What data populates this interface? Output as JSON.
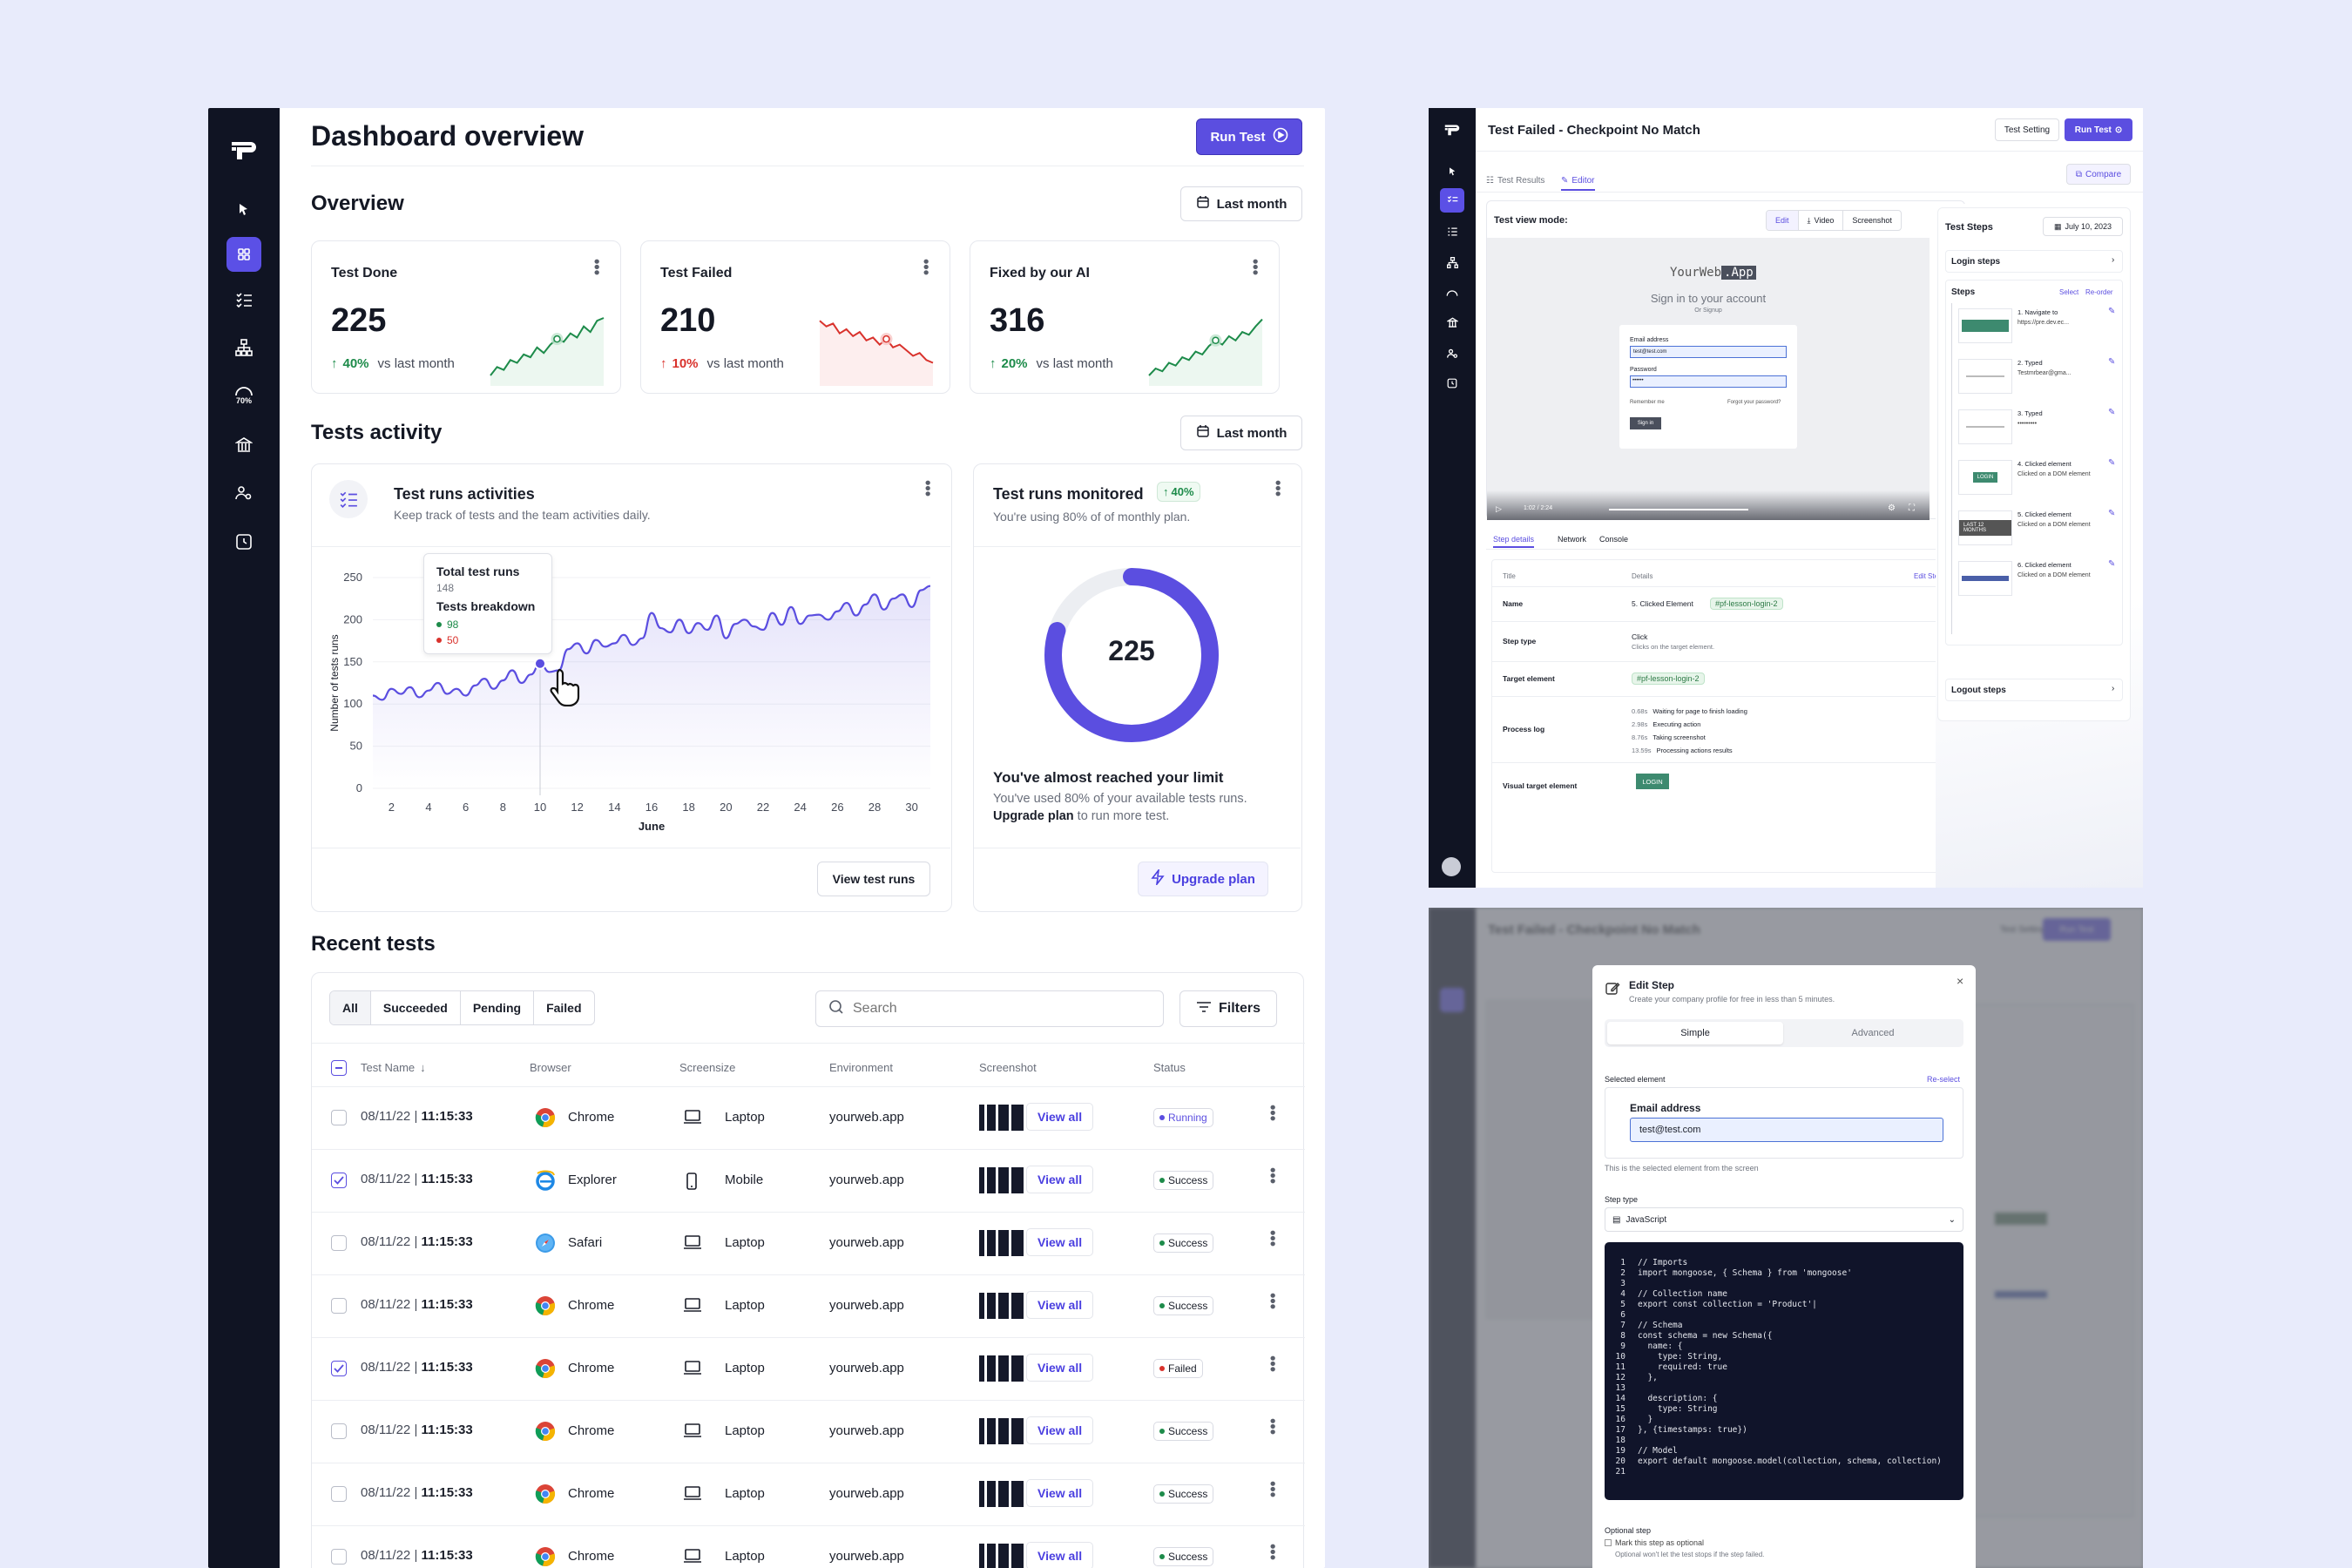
{
  "dashboard": {
    "title": "Dashboard overview",
    "run_test": "Run Test",
    "overview": {
      "heading": "Overview",
      "period": "Last month",
      "cards": [
        {
          "title": "Test Done",
          "value": "225",
          "change": "40%",
          "trend": "up",
          "sub": "vs last month"
        },
        {
          "title": "Test Failed",
          "value": "210",
          "change": "10%",
          "trend": "up",
          "sub": "vs last month"
        },
        {
          "title": "Fixed by our AI",
          "value": "316",
          "change": "20%",
          "trend": "up",
          "sub": "vs last month"
        }
      ]
    },
    "activity": {
      "heading": "Tests activity",
      "period": "Last month",
      "runs_card": {
        "title": "Test runs activities",
        "subtitle": "Keep track of tests and the team activities daily.",
        "tooltip": {
          "title": "Total test runs",
          "value": "148",
          "breakdown_title": "Tests breakdown",
          "passed": "98",
          "failed": "50"
        },
        "view_button": "View test runs"
      },
      "monitor_card": {
        "title": "Test runs monitored",
        "badge": "40%",
        "subtitle": "You're using 80% of of monthly plan.",
        "donut_value": "225",
        "donut_fraction": 0.8,
        "limit_title": "You've almost reached your limit",
        "limit_text": "You've used 80% of your available tests runs.",
        "upgrade_link": "Upgrade plan",
        "upgrade_suffix": " to run more test.",
        "upgrade_button": "Upgrade plan"
      }
    },
    "recent": {
      "heading": "Recent tests",
      "filters": [
        "All",
        "Succeeded",
        "Pending",
        "Failed"
      ],
      "search_placeholder": "Search",
      "filters_button": "Filters",
      "columns": [
        "Test Name",
        "Browser",
        "Screensize",
        "Environment",
        "Screenshot",
        "Status"
      ],
      "rows": [
        {
          "date": "08/11/22",
          "time": "11:15:33",
          "browser": "Chrome",
          "screen": "Laptop",
          "env": "yourweb.app",
          "view": "View all",
          "status": "Running",
          "checked": false
        },
        {
          "date": "08/11/22",
          "time": "11:15:33",
          "browser": "Explorer",
          "screen": "Mobile",
          "env": "yourweb.app",
          "view": "View all",
          "status": "Success",
          "checked": true
        },
        {
          "date": "08/11/22",
          "time": "11:15:33",
          "browser": "Safari",
          "screen": "Laptop",
          "env": "yourweb.app",
          "view": "View all",
          "status": "Success",
          "checked": false
        },
        {
          "date": "08/11/22",
          "time": "11:15:33",
          "browser": "Chrome",
          "screen": "Laptop",
          "env": "yourweb.app",
          "view": "View all",
          "status": "Success",
          "checked": false
        },
        {
          "date": "08/11/22",
          "time": "11:15:33",
          "browser": "Chrome",
          "screen": "Laptop",
          "env": "yourweb.app",
          "view": "View all",
          "status": "Failed",
          "checked": true
        },
        {
          "date": "08/11/22",
          "time": "11:15:33",
          "browser": "Chrome",
          "screen": "Laptop",
          "env": "yourweb.app",
          "view": "View all",
          "status": "Success",
          "checked": false
        },
        {
          "date": "08/11/22",
          "time": "11:15:33",
          "browser": "Chrome",
          "screen": "Laptop",
          "env": "yourweb.app",
          "view": "View all",
          "status": "Success",
          "checked": false
        },
        {
          "date": "08/11/22",
          "time": "11:15:33",
          "browser": "Chrome",
          "screen": "Laptop",
          "env": "yourweb.app",
          "view": "View all",
          "status": "Success",
          "checked": false
        }
      ]
    },
    "sidebar_icons": [
      "logo-icon",
      "cursor-icon",
      "dashboard-icon",
      "checklist-icon",
      "sitemap-icon",
      "gauge-icon",
      "bank-icon",
      "user-settings-icon",
      "clock-icon"
    ],
    "sidebar_gauge_label": "70%"
  },
  "chart_data": {
    "type": "line",
    "xlabel": "June",
    "ylabel": "Number of tests runs",
    "ylim": [
      0,
      250
    ],
    "yticks": [
      0,
      50,
      100,
      150,
      200,
      250
    ],
    "xticks": [
      2,
      4,
      6,
      8,
      10,
      12,
      14,
      16,
      18,
      20,
      22,
      24,
      26,
      28,
      30
    ],
    "xlim": [
      1,
      31
    ],
    "series": [
      {
        "x": [
          1,
          1.5,
          2,
          2.5,
          3,
          3.5,
          4,
          4.5,
          5,
          5.5,
          6,
          6.5,
          7,
          7.5,
          8,
          8.5,
          9,
          9.5,
          10,
          10.5,
          11,
          11.5,
          12,
          12.5,
          13,
          13.5,
          14,
          14.5,
          15,
          15.5,
          16,
          16.5,
          17,
          17.5,
          18,
          18.5,
          19,
          19.5,
          20,
          20.5,
          21,
          21.5,
          22,
          22.5,
          23,
          23.5,
          24,
          24.5,
          25,
          25.5,
          26,
          26.5,
          27,
          27.5,
          28,
          28.5,
          29,
          29.5,
          30,
          30.5,
          31
        ],
        "values": [
          110,
          105,
          118,
          112,
          120,
          108,
          116,
          125,
          112,
          118,
          110,
          122,
          130,
          118,
          128,
          140,
          125,
          135,
          148,
          138,
          140,
          165,
          172,
          160,
          176,
          168,
          172,
          182,
          170,
          178,
          208,
          190,
          185,
          200,
          184,
          196,
          188,
          205,
          178,
          195,
          200,
          192,
          188,
          208,
          194,
          215,
          195,
          205,
          206,
          200,
          210,
          220,
          205,
          218,
          230,
          212,
          225,
          230,
          215,
          235,
          240
        ]
      }
    ],
    "highlight": {
      "x": 10,
      "y": 148
    }
  },
  "editor": {
    "title": "Test Failed - Checkpoint No Match",
    "test_setting": "Test Setting",
    "run_test": "Run Test",
    "tabs": [
      "Test Results",
      "Editor"
    ],
    "compare": "Compare",
    "view_mode_label": "Test view mode:",
    "view_modes": [
      "Edit",
      "Video",
      "Screenshot"
    ],
    "preview": {
      "brand_a": "YourWeb",
      "brand_b": ".App",
      "heading": "Sign in to your account",
      "sub": "Or Signup",
      "email_label": "Email address",
      "email_value": "test@test.com",
      "password_label": "Password",
      "password_value": "••••••",
      "remember": "Remember me",
      "forgot": "Forgot your password?",
      "signin": "Sign in",
      "time": "1:02 / 2:24"
    },
    "detail_tabs": [
      "Step details",
      "Network",
      "Console"
    ],
    "detail_cols": [
      "Title",
      "Details"
    ],
    "edit_step": "Edit Step",
    "details": [
      {
        "label": "Name",
        "value": "5. Clicked Element",
        "chip": "#pf-lesson-login-2"
      },
      {
        "label": "Step type",
        "value": "Click",
        "sub": "Clicks on the target element."
      },
      {
        "label": "Target element",
        "chip": "#pf-lesson-login-2"
      },
      {
        "label": "Process log",
        "log": [
          [
            "0.68s",
            "Waiting for page to finish loading"
          ],
          [
            "2.98s",
            "Executing action"
          ],
          [
            "8.76s",
            "Taking screenshot"
          ],
          [
            "13.59s",
            "Processing actions results"
          ]
        ]
      },
      {
        "label": "Visual target element",
        "button": "LOGIN"
      }
    ],
    "steps_title": "Test Steps",
    "steps_date": "July 10, 2023",
    "login_steps": "Login steps",
    "steps_label": "Steps",
    "select": "Select",
    "reorder": "Re-order",
    "steps": [
      {
        "label": "1. Navigate to",
        "detail": "https://pre.dev.ec..."
      },
      {
        "label": "2. Typed",
        "detail": "Testmrbear@gma..."
      },
      {
        "label": "3. Typed",
        "detail": "•••••••••"
      },
      {
        "label": "4. Clicked element",
        "detail": "Clicked on a DOM element"
      },
      {
        "label": "5. Clicked element",
        "detail": "Clicked on a DOM element"
      },
      {
        "label": "6. Clicked element",
        "detail": "Clicked on a DOM element"
      }
    ],
    "step_thumbs": [
      "",
      "",
      "",
      "LOGIN",
      "LAST 12 MONTHS",
      ""
    ],
    "logout_steps": "Logout steps"
  },
  "modal": {
    "bg_title": "Test Failed - Checkpoint No Match",
    "bg_setting": "Test Setting",
    "bg_run": "Run Test",
    "title": "Edit Step",
    "subtitle": "Create your company profile for free in less than 5 minutes.",
    "tabs": [
      "Simple",
      "Advanced"
    ],
    "selected_label": "Selected element",
    "reselect": "Re-select",
    "field_label": "Email address",
    "field_value": "test@test.com",
    "hint": "This is the selected element from the screen",
    "step_type_label": "Step type",
    "step_type_value": "JavaScript",
    "code_lines": [
      "// Imports",
      "import mongoose, { Schema } from 'mongoose'",
      "",
      "// Collection name",
      "export const collection = 'Product'|",
      "",
      "// Schema",
      "const schema = new Schema({",
      "  name: {",
      "    type: String,",
      "    required: true",
      "  },",
      "",
      "  description: {",
      "    type: String",
      "  }",
      "}, {timestamps: true})",
      "",
      "// Model",
      "export default mongoose.model(collection, schema, collection)",
      ""
    ],
    "optional_label": "Optional step",
    "optional_check": "Mark this step as optional",
    "optional_hint": "Optional won't let the test stops if the step failed."
  }
}
